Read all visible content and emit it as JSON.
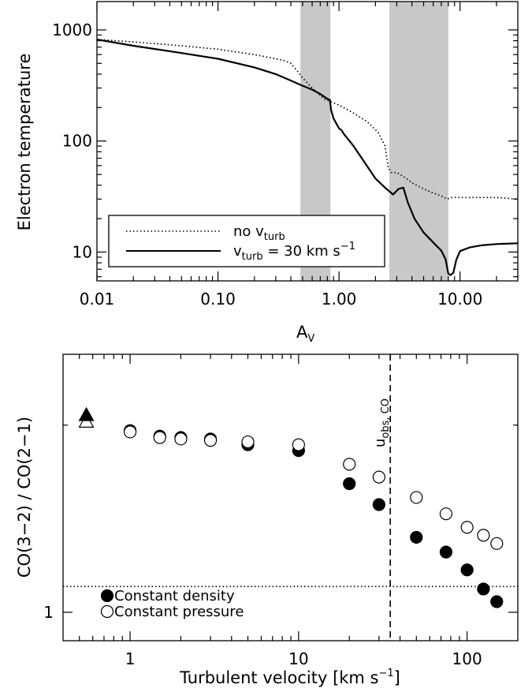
{
  "chart_data": [
    {
      "type": "line",
      "xlabel": "A",
      "xlabel_sub": "V",
      "ylabel": "Electron temperature",
      "xscale": "log",
      "yscale": "log",
      "xlim": [
        0.01,
        30
      ],
      "ylim": [
        5.5,
        1800
      ],
      "x_ticks": [
        0.01,
        0.1,
        1,
        10
      ],
      "x_tick_labels": [
        "0.01",
        "0.10",
        "1.00",
        "10.00"
      ],
      "y_ticks": [
        10,
        100,
        1000
      ],
      "y_tick_labels": [
        "10",
        "100",
        "1000"
      ],
      "shaded_bands": [
        {
          "x_from": 0.48,
          "x_to": 0.85
        },
        {
          "x_from": 2.6,
          "x_to": 8.0
        }
      ],
      "legend": {
        "placement": "bottom-left",
        "entries": [
          {
            "style": "dotted",
            "text": "no v",
            "sub": "turb",
            "rest": "",
            "sup": ""
          },
          {
            "style": "solid",
            "text": "v",
            "sub": "turb",
            "rest": " = 30 km s",
            "sup": "−1"
          }
        ]
      },
      "series": [
        {
          "style": "dotted",
          "x": [
            0.01,
            0.02,
            0.05,
            0.1,
            0.2,
            0.3,
            0.35,
            0.4,
            0.45,
            0.5,
            0.6,
            0.75,
            1.0,
            1.3,
            1.7,
            2.1,
            2.4,
            2.55,
            2.7,
            3.0,
            3.5,
            4.0,
            5.0,
            6.0,
            7.0,
            7.8,
            8.5,
            10,
            15,
            20,
            30
          ],
          "y": [
            820,
            780,
            720,
            670,
            600,
            550,
            530,
            500,
            430,
            370,
            300,
            240,
            210,
            180,
            150,
            120,
            90,
            58,
            52,
            52,
            47,
            42,
            37,
            34,
            32,
            30,
            31,
            31,
            31,
            31,
            30
          ]
        },
        {
          "style": "solid",
          "x": [
            0.01,
            0.02,
            0.05,
            0.1,
            0.2,
            0.3,
            0.4,
            0.5,
            0.6,
            0.7,
            0.8,
            0.84,
            0.86,
            0.9,
            1.0,
            1.05,
            1.1,
            1.3,
            1.6,
            2.0,
            2.4,
            2.8,
            3.1,
            3.4,
            3.7,
            4.2,
            5.0,
            6.0,
            7.0,
            7.6,
            8.0,
            8.3,
            8.8,
            9.3,
            10,
            12,
            15,
            20,
            30
          ],
          "y": [
            820,
            720,
            620,
            550,
            460,
            400,
            350,
            315,
            290,
            265,
            240,
            235,
            190,
            160,
            130,
            125,
            115,
            92,
            66,
            46,
            38,
            33,
            37,
            38,
            28,
            20,
            15,
            12.2,
            10.3,
            8.6,
            6.4,
            6.2,
            6.5,
            8.5,
            10.2,
            11,
            11.5,
            11.8,
            12
          ]
        }
      ]
    },
    {
      "type": "scatter",
      "xlabel": "Turbulent velocity [km s",
      "xlabel_sup": "−1",
      "xlabel_end": "]",
      "ylabel": "CO(3−2) / CO(2−1)",
      "xscale": "log",
      "yscale": "log",
      "xlim": [
        0.4,
        200
      ],
      "ylim": [
        0.9,
        2.6
      ],
      "x_ticks": [
        1,
        10,
        100
      ],
      "x_tick_labels": [
        "1",
        "10",
        "100"
      ],
      "y_ticks": [
        1
      ],
      "y_tick_labels": [
        "1"
      ],
      "hline": {
        "y": 1.1,
        "style": "dotted"
      },
      "vline": {
        "x": 35,
        "style": "dashed",
        "label": "u",
        "label_sub": "obs, CO"
      },
      "triangles": [
        {
          "x": 0.55,
          "y": 2.02,
          "filled": false
        },
        {
          "x": 0.55,
          "y": 2.07,
          "filled": true
        }
      ],
      "legend": {
        "placement": "bottom-left",
        "entries": [
          {
            "marker": "filled-circle",
            "text": "Constant density"
          },
          {
            "marker": "open-circle",
            "text": "Constant pressure"
          }
        ]
      },
      "series": [
        {
          "name": "Constant density",
          "marker": "filled-circle",
          "x": [
            1,
            1.5,
            2,
            3,
            5,
            10,
            20,
            30,
            50,
            75,
            100,
            125,
            150
          ],
          "y": [
            1.96,
            1.92,
            1.91,
            1.9,
            1.86,
            1.82,
            1.61,
            1.49,
            1.32,
            1.25,
            1.17,
            1.09,
            1.04
          ]
        },
        {
          "name": "Constant pressure",
          "marker": "open-circle",
          "x": [
            1,
            1.5,
            2,
            3,
            5,
            10,
            20,
            30,
            50,
            75,
            100,
            125,
            150
          ],
          "y": [
            1.95,
            1.91,
            1.9,
            1.89,
            1.88,
            1.86,
            1.73,
            1.65,
            1.53,
            1.44,
            1.37,
            1.33,
            1.29
          ]
        }
      ]
    }
  ]
}
